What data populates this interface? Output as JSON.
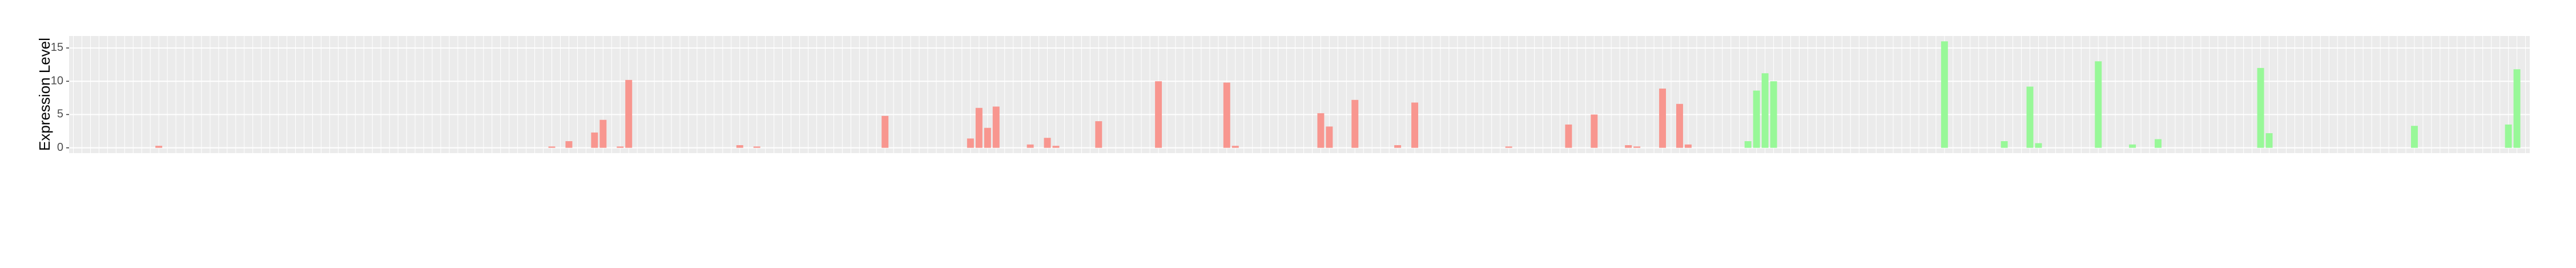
{
  "chart_data": {
    "type": "bar",
    "y_label": "Expression Level",
    "categories": [
      null,
      null,
      null,
      null,
      null,
      null,
      null,
      null,
      null,
      null,
      null,
      null,
      null,
      null,
      null,
      null,
      null,
      null,
      null,
      null,
      null,
      null,
      null,
      null,
      null,
      null,
      null,
      null,
      null,
      null,
      null,
      null,
      null,
      null,
      null,
      null,
      null,
      null,
      null,
      null,
      null,
      null,
      null,
      null,
      null,
      null,
      null,
      null,
      null,
      null,
      null,
      null,
      null,
      null,
      null,
      null,
      null,
      null,
      null,
      null,
      null,
      null,
      null,
      null,
      null,
      null,
      null,
      null,
      null,
      null,
      null,
      null,
      null,
      null,
      null,
      null,
      null,
      null,
      null,
      null,
      null,
      null,
      null,
      null,
      null,
      null,
      null,
      null,
      null,
      null,
      null,
      null,
      null,
      null,
      null,
      null,
      null,
      null,
      null,
      null,
      null,
      null,
      null,
      null,
      null,
      null,
      null,
      null,
      null,
      null,
      null,
      null,
      null,
      null,
      null,
      null,
      null,
      null,
      null,
      null,
      null,
      null,
      null,
      null,
      null,
      null,
      null,
      null,
      null,
      null,
      null,
      null,
      null,
      null,
      null,
      null,
      null,
      null,
      null,
      null,
      null,
      null,
      null,
      null,
      null,
      null,
      null,
      null,
      null,
      null,
      null,
      null,
      null,
      null,
      null,
      null,
      null,
      null,
      null,
      null,
      null,
      null,
      null,
      null,
      null,
      null,
      null,
      null,
      null,
      null,
      null,
      null,
      null,
      null,
      null,
      null,
      null,
      null,
      null,
      null,
      null,
      null,
      null,
      null,
      null,
      null,
      null,
      null,
      null,
      null,
      null,
      null,
      null,
      null,
      null,
      null,
      null,
      null,
      null,
      null,
      null,
      null,
      null,
      null,
      null,
      null,
      null,
      null,
      null,
      null,
      null,
      null,
      null,
      null,
      null,
      null,
      null,
      null,
      null,
      null,
      null,
      null,
      null,
      null,
      null,
      null,
      null,
      null,
      null,
      null,
      null,
      null,
      null,
      null,
      null,
      null,
      null,
      null,
      null,
      null,
      null,
      null,
      null,
      null,
      null,
      null,
      null,
      null,
      null,
      null,
      null,
      null,
      null,
      null,
      null,
      null,
      null,
      null,
      null,
      null,
      null,
      null,
      null,
      null,
      null,
      null,
      null,
      null,
      null,
      null,
      null,
      null,
      null,
      null,
      null,
      null,
      null,
      null,
      null,
      null,
      null,
      null,
      null,
      null,
      null,
      null,
      null,
      null
    ],
    "series": [
      {
        "color": "#f8968f",
        "values": [
          0,
          0,
          0,
          0,
          0,
          0,
          0,
          0,
          0,
          0,
          0.3,
          0,
          0,
          0,
          0,
          0,
          0,
          0,
          0,
          0,
          0,
          0,
          0,
          0,
          0,
          0,
          0,
          0,
          0,
          0,
          0,
          0,
          0,
          0,
          0,
          0,
          0,
          0,
          0,
          0,
          0,
          0,
          0,
          0,
          0,
          0,
          0,
          0,
          0,
          0,
          0,
          0,
          0,
          0,
          0,
          0,
          0.2,
          0,
          1.0,
          0,
          0,
          2.3,
          4.2,
          0,
          0.2,
          10.2,
          0,
          0,
          0,
          0,
          0,
          0,
          0,
          0,
          0,
          0,
          0,
          0,
          0.4,
          0,
          0.2,
          0,
          0,
          0,
          0,
          0,
          0,
          0,
          0,
          0,
          0,
          0,
          0,
          0,
          0,
          4.8,
          0,
          0,
          0,
          0,
          0,
          0,
          0,
          0,
          0,
          1.4,
          6.0,
          3.0,
          6.2,
          0,
          0,
          0,
          0.5,
          0,
          1.5,
          0.3,
          0,
          0,
          0,
          0,
          4.0,
          0,
          0,
          0,
          0,
          0,
          0,
          10.0,
          0,
          0,
          0,
          0,
          0,
          0,
          0,
          9.8,
          0.3,
          0,
          0,
          0,
          0,
          0,
          0,
          0,
          0,
          0,
          5.2,
          3.2,
          0,
          0,
          7.2,
          0,
          0,
          0,
          0,
          0.4,
          0,
          6.8,
          0,
          0,
          0,
          0,
          0,
          0,
          0,
          0,
          0,
          0,
          0.2,
          0,
          0,
          0,
          0,
          0,
          0,
          3.5,
          0,
          0,
          5.0,
          0,
          0,
          0,
          0.4,
          0.2,
          0,
          0,
          8.9,
          0,
          6.6,
          0.5,
          0,
          0,
          0,
          null,
          null,
          null,
          null,
          null,
          null,
          null,
          null,
          null,
          null,
          null,
          null,
          null,
          null,
          null,
          null,
          null,
          null,
          null,
          null,
          null,
          null,
          null,
          null,
          null,
          null,
          null,
          null,
          null,
          null,
          null,
          null,
          null,
          null,
          null,
          null,
          null,
          null,
          null,
          null,
          null,
          null,
          null,
          null,
          null,
          null,
          null,
          null,
          null,
          null,
          null,
          null,
          null,
          null,
          null,
          null,
          null,
          null,
          null,
          null,
          null,
          null,
          null,
          null,
          null,
          null,
          null,
          null,
          null,
          null,
          null,
          null,
          null,
          null,
          null,
          null,
          null,
          null,
          null,
          null,
          null,
          null,
          null,
          null,
          null,
          null,
          null,
          null,
          null,
          null,
          null,
          null,
          null,
          null,
          null
        ]
      },
      {
        "color": "#98f898",
        "values": [
          null,
          null,
          null,
          null,
          null,
          null,
          null,
          null,
          null,
          null,
          null,
          null,
          null,
          null,
          null,
          null,
          null,
          null,
          null,
          null,
          null,
          null,
          null,
          null,
          null,
          null,
          null,
          null,
          null,
          null,
          null,
          null,
          null,
          null,
          null,
          null,
          null,
          null,
          null,
          null,
          null,
          null,
          null,
          null,
          null,
          null,
          null,
          null,
          null,
          null,
          null,
          null,
          null,
          null,
          null,
          null,
          null,
          null,
          null,
          null,
          null,
          null,
          null,
          null,
          null,
          null,
          null,
          null,
          null,
          null,
          null,
          null,
          null,
          null,
          null,
          null,
          null,
          null,
          null,
          null,
          null,
          null,
          null,
          null,
          null,
          null,
          null,
          null,
          null,
          null,
          null,
          null,
          null,
          null,
          null,
          null,
          null,
          null,
          null,
          null,
          null,
          null,
          null,
          null,
          null,
          null,
          null,
          null,
          null,
          null,
          null,
          null,
          null,
          null,
          null,
          null,
          null,
          null,
          null,
          null,
          null,
          null,
          null,
          null,
          null,
          null,
          null,
          null,
          null,
          null,
          null,
          null,
          null,
          null,
          null,
          null,
          null,
          null,
          null,
          null,
          null,
          null,
          null,
          null,
          null,
          null,
          null,
          null,
          null,
          null,
          null,
          null,
          null,
          null,
          null,
          null,
          null,
          null,
          null,
          null,
          null,
          null,
          null,
          null,
          null,
          null,
          null,
          null,
          null,
          null,
          null,
          null,
          null,
          null,
          null,
          null,
          null,
          null,
          null,
          null,
          null,
          null,
          null,
          null,
          null,
          null,
          null,
          null,
          null,
          null,
          null,
          null,
          null,
          0,
          0,
          0,
          1.0,
          8.6,
          11.2,
          10.0,
          0,
          0,
          0,
          0,
          0,
          0,
          0,
          0,
          0,
          0,
          0,
          0,
          0,
          0,
          0,
          0,
          0,
          0,
          0,
          16.0,
          0,
          0,
          0,
          0,
          0,
          0,
          1.0,
          0,
          0,
          9.2,
          0.7,
          0,
          0,
          0,
          0,
          0,
          0,
          13.0,
          0,
          0,
          0,
          0.5,
          0,
          0,
          1.3,
          0,
          0,
          0,
          0,
          0,
          0,
          0,
          0,
          0,
          0,
          0,
          12.0,
          2.2,
          0,
          0,
          0,
          0,
          0,
          0,
          0,
          0,
          0,
          0,
          0,
          0,
          0,
          0,
          0,
          0,
          3.3,
          0,
          0,
          0,
          0,
          0,
          0,
          0,
          0,
          0,
          0,
          3.5,
          11.8,
          0
        ]
      }
    ],
    "ylim": [
      -0.8,
      16.8
    ],
    "yticks": [
      0,
      5,
      10,
      15
    ],
    "grid": true
  }
}
